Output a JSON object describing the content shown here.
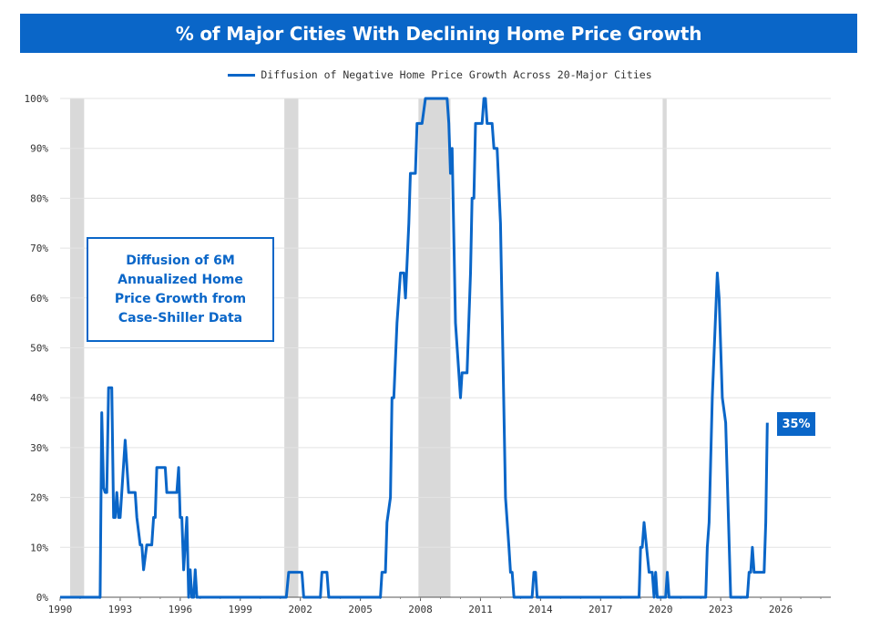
{
  "chart_data": {
    "type": "line",
    "title": "% of Major Cities With Declining Home Price Growth",
    "legend": "Diffusion of Negative Home Price Growth Across 20-Major Cities",
    "legend_position": "top-center",
    "annotation": "Diffusion of 6M Annualized Home Price Growth from Case-Shiller Data",
    "end_label": "35%",
    "xlim": [
      1990,
      2028.5
    ],
    "ylim": [
      0,
      100
    ],
    "grid": true,
    "x_tick_labels": [
      "1990",
      "1993",
      "1996",
      "1999",
      "2002",
      "2005",
      "2008",
      "2011",
      "2014",
      "2017",
      "2020",
      "2023",
      "2026"
    ],
    "y_tick_labels": [
      "0%",
      "10%",
      "20%",
      "30%",
      "40%",
      "50%",
      "60%",
      "70%",
      "80%",
      "90%",
      "100%"
    ],
    "recessions": [
      [
        1990.5,
        1991.2
      ],
      [
        2001.2,
        2001.9
      ],
      [
        2007.9,
        2009.5
      ],
      [
        2020.1,
        2020.3
      ]
    ],
    "series": [
      {
        "name": "Diffusion of Negative Home Price Growth Across 20-Major Cities",
        "color": "#0a66c8",
        "points": [
          [
            1990.0,
            0
          ],
          [
            1992.0,
            0
          ],
          [
            1992.08,
            37
          ],
          [
            1992.17,
            22
          ],
          [
            1992.25,
            21
          ],
          [
            1992.33,
            21
          ],
          [
            1992.42,
            42
          ],
          [
            1992.58,
            42
          ],
          [
            1992.67,
            16
          ],
          [
            1992.75,
            16
          ],
          [
            1992.83,
            21
          ],
          [
            1992.92,
            16
          ],
          [
            1993.0,
            16
          ],
          [
            1993.25,
            31.5
          ],
          [
            1993.42,
            21
          ],
          [
            1993.75,
            21
          ],
          [
            1993.83,
            16
          ],
          [
            1994.0,
            10.5
          ],
          [
            1994.08,
            10.5
          ],
          [
            1994.17,
            5.5
          ],
          [
            1994.33,
            10.5
          ],
          [
            1994.58,
            10.5
          ],
          [
            1994.67,
            16
          ],
          [
            1994.75,
            16
          ],
          [
            1994.83,
            26
          ],
          [
            1995.25,
            26
          ],
          [
            1995.33,
            21
          ],
          [
            1995.83,
            21
          ],
          [
            1995.92,
            26
          ],
          [
            1996.0,
            16
          ],
          [
            1996.08,
            16
          ],
          [
            1996.17,
            5.5
          ],
          [
            1996.33,
            16
          ],
          [
            1996.42,
            0
          ],
          [
            1996.5,
            5.5
          ],
          [
            1996.58,
            0
          ],
          [
            1996.67,
            0
          ],
          [
            1996.75,
            5.5
          ],
          [
            1996.83,
            0
          ],
          [
            2001.3,
            0
          ],
          [
            2001.42,
            5
          ],
          [
            2002.08,
            5
          ],
          [
            2002.17,
            0
          ],
          [
            2003.0,
            0
          ],
          [
            2003.08,
            5
          ],
          [
            2003.33,
            5
          ],
          [
            2003.42,
            0
          ],
          [
            2006.0,
            0
          ],
          [
            2006.08,
            5
          ],
          [
            2006.25,
            5
          ],
          [
            2006.33,
            15
          ],
          [
            2006.5,
            20
          ],
          [
            2006.58,
            40
          ],
          [
            2006.67,
            40
          ],
          [
            2006.83,
            55
          ],
          [
            2007.0,
            65
          ],
          [
            2007.17,
            65
          ],
          [
            2007.25,
            60
          ],
          [
            2007.42,
            75
          ],
          [
            2007.5,
            85
          ],
          [
            2007.75,
            85
          ],
          [
            2007.83,
            95
          ],
          [
            2008.08,
            95
          ],
          [
            2008.25,
            100
          ],
          [
            2009.33,
            100
          ],
          [
            2009.42,
            95
          ],
          [
            2009.5,
            85
          ],
          [
            2009.58,
            90
          ],
          [
            2009.75,
            55
          ],
          [
            2010.0,
            40
          ],
          [
            2010.08,
            45
          ],
          [
            2010.33,
            45
          ],
          [
            2010.5,
            65
          ],
          [
            2010.58,
            80
          ],
          [
            2010.67,
            80
          ],
          [
            2010.75,
            95
          ],
          [
            2011.08,
            95
          ],
          [
            2011.17,
            100
          ],
          [
            2011.25,
            100
          ],
          [
            2011.33,
            95
          ],
          [
            2011.58,
            95
          ],
          [
            2011.67,
            90
          ],
          [
            2011.83,
            90
          ],
          [
            2012.0,
            75
          ],
          [
            2012.25,
            20
          ],
          [
            2012.42,
            10
          ],
          [
            2012.5,
            5
          ],
          [
            2012.58,
            5
          ],
          [
            2012.67,
            0
          ],
          [
            2013.58,
            0
          ],
          [
            2013.67,
            5
          ],
          [
            2013.75,
            5
          ],
          [
            2013.83,
            0
          ],
          [
            2018.92,
            0
          ],
          [
            2019.0,
            10
          ],
          [
            2019.08,
            10
          ],
          [
            2019.17,
            15
          ],
          [
            2019.42,
            5
          ],
          [
            2019.58,
            5
          ],
          [
            2019.67,
            0
          ],
          [
            2019.75,
            5
          ],
          [
            2019.83,
            0
          ],
          [
            2020.25,
            0
          ],
          [
            2020.33,
            5
          ],
          [
            2020.42,
            0
          ],
          [
            2022.25,
            0
          ],
          [
            2022.33,
            10
          ],
          [
            2022.42,
            15
          ],
          [
            2022.58,
            40
          ],
          [
            2022.83,
            65
          ],
          [
            2022.92,
            60
          ],
          [
            2023.08,
            40
          ],
          [
            2023.25,
            35
          ],
          [
            2023.5,
            0
          ],
          [
            2024.33,
            0
          ],
          [
            2024.42,
            5
          ],
          [
            2024.5,
            5
          ],
          [
            2024.58,
            10
          ],
          [
            2024.67,
            5
          ],
          [
            2025.17,
            5
          ],
          [
            2025.25,
            15
          ],
          [
            2025.33,
            35
          ]
        ]
      }
    ]
  }
}
